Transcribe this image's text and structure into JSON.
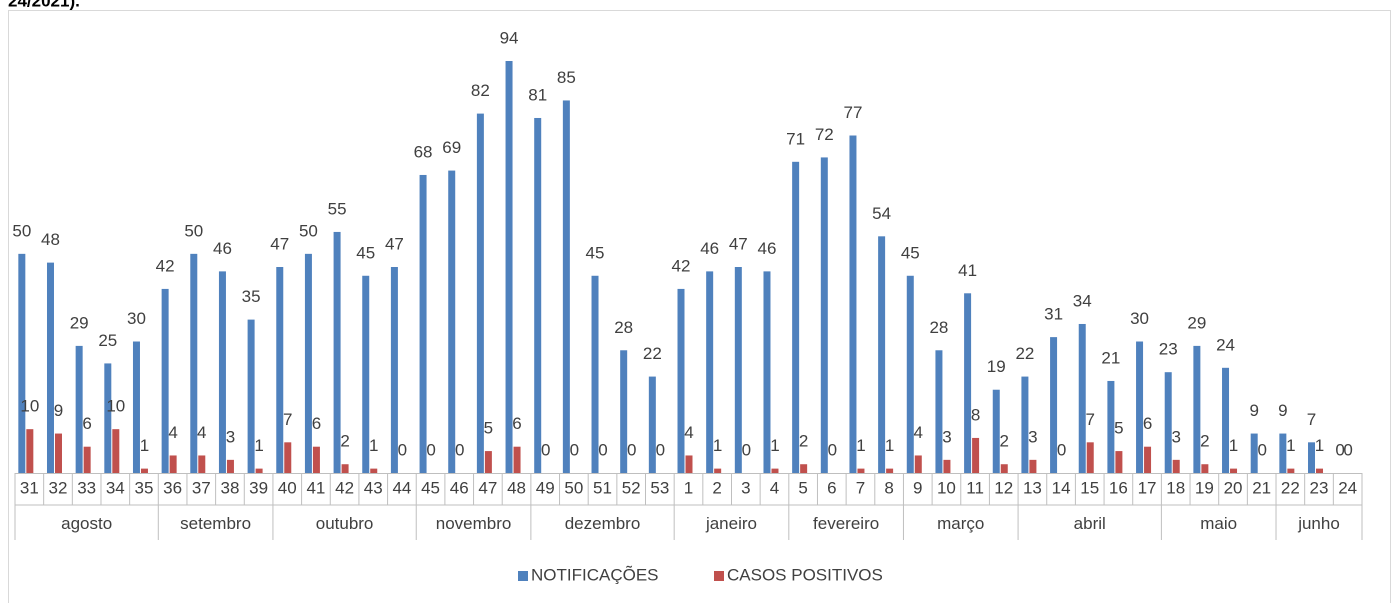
{
  "chart_data": {
    "type": "bar",
    "title": "24/2021).",
    "categories": [
      "31",
      "32",
      "33",
      "34",
      "35",
      "36",
      "37",
      "38",
      "39",
      "40",
      "41",
      "42",
      "43",
      "44",
      "45",
      "46",
      "47",
      "48",
      "49",
      "50",
      "51",
      "52",
      "53",
      "1",
      "2",
      "3",
      "4",
      "5",
      "6",
      "7",
      "8",
      "9",
      "10",
      "11",
      "12",
      "13",
      "14",
      "15",
      "16",
      "17",
      "18",
      "19",
      "20",
      "21",
      "22",
      "23",
      "24"
    ],
    "month_categories": [
      "agosto",
      null,
      null,
      null,
      null,
      "setembro",
      null,
      null,
      null,
      "outubro",
      null,
      null,
      null,
      null,
      "novembro",
      null,
      null,
      null,
      "dezembro",
      null,
      null,
      null,
      null,
      "janeiro",
      null,
      null,
      null,
      "fevereiro",
      null,
      null,
      null,
      "março",
      null,
      null,
      null,
      "abril",
      null,
      null,
      null,
      null,
      "maio",
      null,
      null,
      null,
      "junho",
      null,
      null
    ],
    "series": [
      {
        "name": "NOTIFICAÇÕES",
        "color": "#4f81bd",
        "values": [
          50,
          48,
          29,
          25,
          30,
          42,
          50,
          46,
          35,
          47,
          50,
          55,
          45,
          47,
          68,
          69,
          82,
          94,
          81,
          85,
          45,
          28,
          22,
          42,
          46,
          47,
          46,
          71,
          72,
          77,
          54,
          45,
          28,
          41,
          19,
          22,
          31,
          34,
          21,
          30,
          23,
          29,
          24,
          9,
          9,
          7,
          0
        ]
      },
      {
        "name": "CASOS POSITIVOS",
        "color": "#c0504d",
        "values": [
          10,
          9,
          6,
          10,
          1,
          4,
          4,
          3,
          1,
          7,
          6,
          2,
          1,
          0,
          0,
          0,
          5,
          6,
          0,
          0,
          0,
          0,
          0,
          4,
          1,
          0,
          1,
          2,
          0,
          1,
          1,
          4,
          3,
          8,
          2,
          3,
          0,
          7,
          5,
          6,
          3,
          2,
          1,
          0,
          1,
          1,
          0
        ]
      }
    ],
    "legend": "bottom"
  }
}
